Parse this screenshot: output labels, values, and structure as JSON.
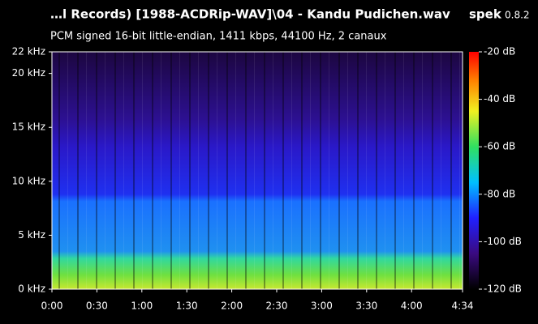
{
  "header": {
    "title": "…l Records) [1988-ACDRip-WAV]\\04 - Kandu Pudichen.wav",
    "app": "spek",
    "version": "0.8.2",
    "subtitle": "PCM signed 16-bit little-endian, 1411 kbps, 44100 Hz, 2 canaux"
  },
  "chart_data": {
    "type": "spectrogram",
    "xlim": [
      0,
      274
    ],
    "xticks": [
      {
        "value": 0,
        "label": "0:00"
      },
      {
        "value": 30,
        "label": "0:30"
      },
      {
        "value": 60,
        "label": "1:00"
      },
      {
        "value": 90,
        "label": "1:30"
      },
      {
        "value": 120,
        "label": "2:00"
      },
      {
        "value": 150,
        "label": "2:30"
      },
      {
        "value": 180,
        "label": "3:00"
      },
      {
        "value": 210,
        "label": "3:30"
      },
      {
        "value": 240,
        "label": "4:00"
      },
      {
        "value": 274,
        "label": "4:34"
      }
    ],
    "ylim": [
      0,
      22
    ],
    "yticks": [
      {
        "value": 0,
        "label": "0 kHz"
      },
      {
        "value": 5,
        "label": "5 kHz"
      },
      {
        "value": 10,
        "label": "10 kHz"
      },
      {
        "value": 15,
        "label": "15 kHz"
      },
      {
        "value": 20,
        "label": "20 kHz"
      },
      {
        "value": 22,
        "label": "22 kHz"
      }
    ],
    "colorbar_lim": [
      -120,
      -20
    ],
    "colorbar_ticks": [
      {
        "value": -20,
        "label": "-20 dB"
      },
      {
        "value": -40,
        "label": "-40 dB"
      },
      {
        "value": -60,
        "label": "-60 dB"
      },
      {
        "value": -80,
        "label": "-80 dB"
      },
      {
        "value": -100,
        "label": "-100 dB"
      },
      {
        "value": -120,
        "label": "-120 dB"
      }
    ]
  }
}
